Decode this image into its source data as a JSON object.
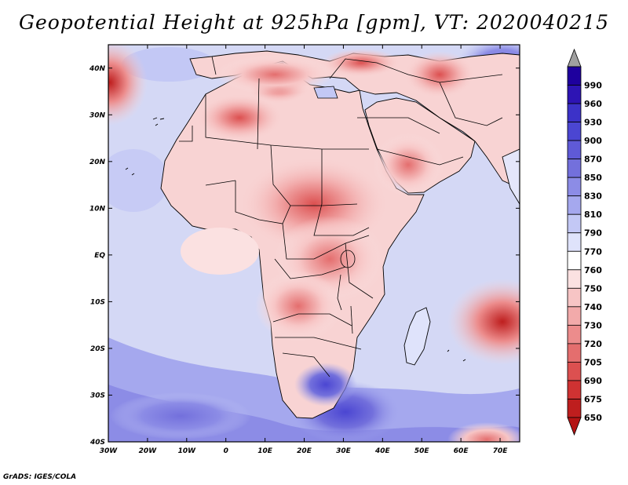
{
  "title": "Geopotential Height at 925hPa [gpm], VT: 2020040215",
  "credit": "GrADS: IGES/COLA",
  "map": {
    "variable": "Geopotential Height",
    "level": "925hPa",
    "units": "gpm",
    "valid_time": "2020040215",
    "lon_range": [
      -30,
      75
    ],
    "lat_range": [
      -40,
      45
    ],
    "lon_ticks": [
      {
        "v": -30,
        "label": "30W"
      },
      {
        "v": -20,
        "label": "20W"
      },
      {
        "v": -10,
        "label": "10W"
      },
      {
        "v": 0,
        "label": "0"
      },
      {
        "v": 10,
        "label": "10E"
      },
      {
        "v": 20,
        "label": "20E"
      },
      {
        "v": 30,
        "label": "30E"
      },
      {
        "v": 40,
        "label": "40E"
      },
      {
        "v": 50,
        "label": "50E"
      },
      {
        "v": 60,
        "label": "60E"
      },
      {
        "v": 70,
        "label": "70E"
      }
    ],
    "lat_ticks": [
      {
        "v": 40,
        "label": "40N"
      },
      {
        "v": 30,
        "label": "30N"
      },
      {
        "v": 20,
        "label": "20N"
      },
      {
        "v": 10,
        "label": "10N"
      },
      {
        "v": 0,
        "label": "EQ"
      },
      {
        "v": -10,
        "label": "10S"
      },
      {
        "v": -20,
        "label": "20S"
      },
      {
        "v": -30,
        "label": "30S"
      },
      {
        "v": -40,
        "label": "40S"
      }
    ]
  },
  "colorbar": {
    "bins": [
      {
        "label": "990",
        "color": "#1e009e"
      },
      {
        "label": "960",
        "color": "#2d14b4"
      },
      {
        "label": "930",
        "color": "#3c32c8"
      },
      {
        "label": "900",
        "color": "#4b46d2"
      },
      {
        "label": "870",
        "color": "#5f5ad7"
      },
      {
        "label": "850",
        "color": "#7370dc"
      },
      {
        "label": "830",
        "color": "#8c8ce6"
      },
      {
        "label": "810",
        "color": "#a5a8ee"
      },
      {
        "label": "790",
        "color": "#c3c8f5"
      },
      {
        "label": "770",
        "color": "#dfe3fb"
      },
      {
        "label": "760",
        "color": "#ffffff"
      },
      {
        "label": "750",
        "color": "#fbe1e1"
      },
      {
        "label": "740",
        "color": "#f7c5c5"
      },
      {
        "label": "730",
        "color": "#f2aaaa"
      },
      {
        "label": "720",
        "color": "#ec8c8c"
      },
      {
        "label": "705",
        "color": "#e46e6e"
      },
      {
        "label": "690",
        "color": "#dc5050"
      },
      {
        "label": "675",
        "color": "#cf3232"
      },
      {
        "label": "650",
        "color": "#be1e1e"
      }
    ],
    "top_arrow_color": "#a0a0a0",
    "bottom_arrow_color": "#b41414"
  },
  "colors": {
    "ocean_base": "#d4d8f5",
    "land_base": "#f8d3d3",
    "coast": "#000000"
  }
}
